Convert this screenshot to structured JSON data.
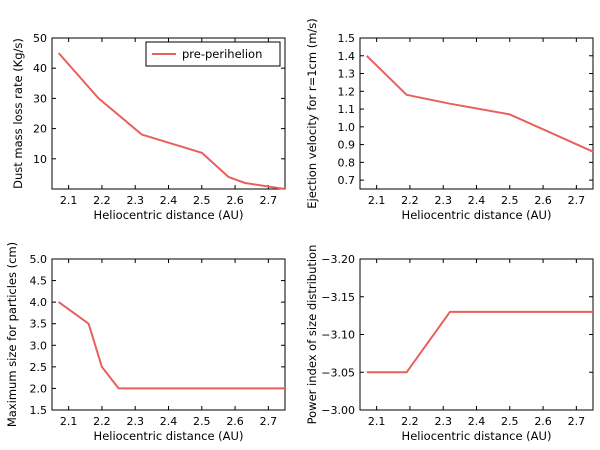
{
  "colors": {
    "series": "#e8605c"
  },
  "legend": {
    "label": "pre-perihelion",
    "placement": "upper-right of top-left panel"
  },
  "chart_data": [
    {
      "type": "line",
      "xlabel": "Heliocentric distance (AU)",
      "ylabel": "Dust mass loss rate (Kg/s)",
      "xlim": [
        2.05,
        2.75
      ],
      "ylim": [
        0,
        50
      ],
      "xticks": [
        "2.1",
        "2.2",
        "2.3",
        "2.4",
        "2.5",
        "2.6",
        "2.7"
      ],
      "yticks": [
        "10",
        "20",
        "30",
        "40",
        "50"
      ],
      "series": [
        {
          "name": "pre-perihelion",
          "x": [
            2.07,
            2.19,
            2.32,
            2.5,
            2.58,
            2.63,
            2.75
          ],
          "y": [
            45,
            30,
            18,
            12,
            4,
            2,
            0
          ]
        }
      ]
    },
    {
      "type": "line",
      "xlabel": "Heliocentric distance (AU)",
      "ylabel": "Ejection velocity for r=1cm (m/s)",
      "xlim": [
        2.05,
        2.75
      ],
      "ylim": [
        0.65,
        1.5
      ],
      "xticks": [
        "2.1",
        "2.2",
        "2.3",
        "2.4",
        "2.5",
        "2.6",
        "2.7"
      ],
      "yticks": [
        "0.7",
        "0.8",
        "0.9",
        "1.0",
        "1.1",
        "1.2",
        "1.3",
        "1.4",
        "1.5"
      ],
      "series": [
        {
          "name": "pre-perihelion",
          "x": [
            2.07,
            2.19,
            2.32,
            2.5,
            2.75
          ],
          "y": [
            1.4,
            1.18,
            1.13,
            1.07,
            0.86
          ]
        }
      ]
    },
    {
      "type": "line",
      "xlabel": "Heliocentric distance (AU)",
      "ylabel": "Maximum size for particles (cm)",
      "xlim": [
        2.05,
        2.75
      ],
      "ylim": [
        1.5,
        5.0
      ],
      "xticks": [
        "2.1",
        "2.2",
        "2.3",
        "2.4",
        "2.5",
        "2.6",
        "2.7"
      ],
      "yticks": [
        "1.5",
        "2.0",
        "2.5",
        "3.0",
        "3.5",
        "4.0",
        "4.5",
        "5.0"
      ],
      "series": [
        {
          "name": "pre-perihelion",
          "x": [
            2.07,
            2.16,
            2.2,
            2.25,
            2.75
          ],
          "y": [
            4.0,
            3.5,
            2.5,
            2.0,
            2.0
          ]
        }
      ]
    },
    {
      "type": "line",
      "xlabel": "Heliocentric distance (AU)",
      "ylabel": "Power index of size distribution",
      "xlim": [
        2.05,
        2.75
      ],
      "ylim": [
        -3.2,
        -3.0
      ],
      "yreversed": true,
      "xticks": [
        "2.1",
        "2.2",
        "2.3",
        "2.4",
        "2.5",
        "2.6",
        "2.7"
      ],
      "yticks": [
        "−3.20",
        "−3.15",
        "−3.10",
        "−3.05",
        "−3.00"
      ],
      "yticks_values": [
        -3.2,
        -3.15,
        -3.1,
        -3.05,
        -3.0
      ],
      "series": [
        {
          "name": "pre-perihelion",
          "x": [
            2.07,
            2.19,
            2.32,
            2.75
          ],
          "y": [
            -3.05,
            -3.05,
            -3.13,
            -3.13
          ]
        }
      ]
    }
  ]
}
